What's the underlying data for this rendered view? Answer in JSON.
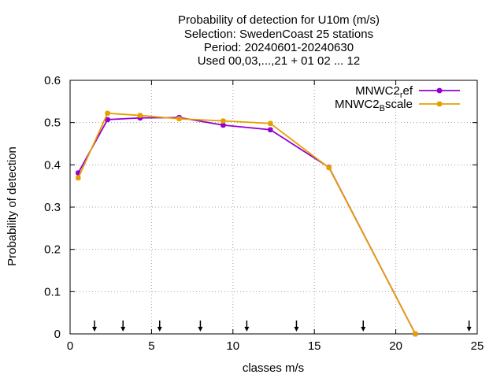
{
  "chart_data": {
    "type": "line",
    "title": [
      "Probability of detection  for U10m (m/s)",
      "Selection: SwedenCoast     25 stations",
      "Period: 20240601-20240630",
      "Used 00,03,...,21 + 01 02 ... 12"
    ],
    "xlabel": "classes m/s",
    "ylabel": "Probability of detection",
    "xlim": [
      0,
      25
    ],
    "ylim": [
      0,
      0.6
    ],
    "xticks": [
      0,
      5,
      10,
      15,
      20,
      25
    ],
    "yticks": [
      0,
      0.1,
      0.2,
      0.3,
      0.4,
      0.5,
      0.6
    ],
    "xtick_labels": [
      "0",
      "5",
      "10",
      "15",
      "20",
      "25"
    ],
    "ytick_labels": [
      "0",
      "0.1",
      "0.2",
      "0.3",
      "0.4",
      "0.5",
      "0.6"
    ],
    "grid": true,
    "legend_position": "top-right",
    "class_markers_x": [
      1.5,
      3.25,
      5.5,
      8.0,
      10.85,
      13.9,
      18.0,
      24.5
    ],
    "series": [
      {
        "name_base": "MNWC2",
        "name_sub": "r",
        "name_tail": "ef",
        "color": "#9400d3",
        "x": [
          0.5,
          2.3,
          4.3,
          6.7,
          9.4,
          12.3,
          15.9,
          21.2
        ],
        "y": [
          0.381,
          0.507,
          0.511,
          0.512,
          0.494,
          0.483,
          0.394,
          0.0
        ]
      },
      {
        "name_base": "MNWC2",
        "name_sub": "B",
        "name_tail": "scale",
        "color": "#e69f00",
        "x": [
          0.5,
          2.3,
          4.3,
          6.7,
          9.4,
          12.3,
          15.9,
          21.2
        ],
        "y": [
          0.369,
          0.522,
          0.517,
          0.509,
          0.504,
          0.498,
          0.393,
          0.0
        ]
      }
    ]
  }
}
